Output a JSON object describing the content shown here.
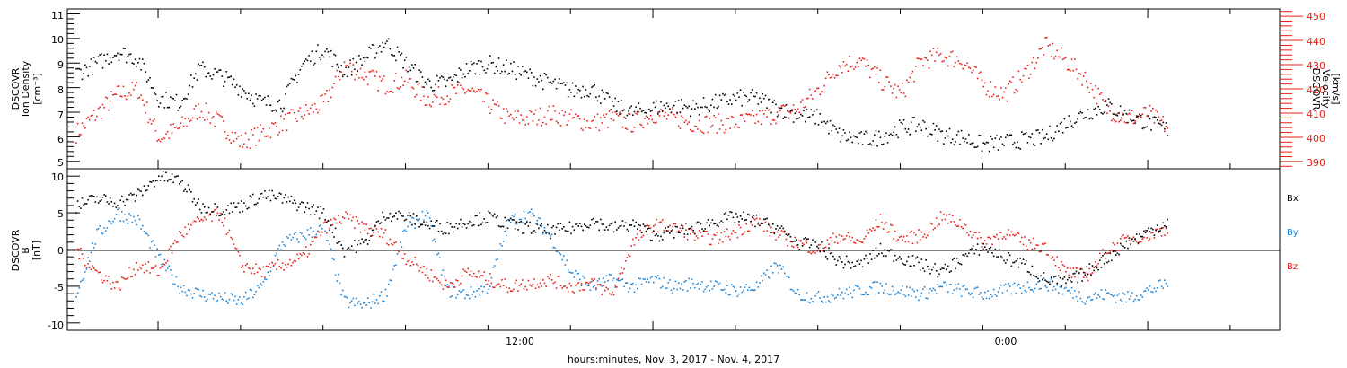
{
  "xlabel": "hours:minutes, Nov.  3, 2017 - Nov.  4, 2017",
  "x_ticks": [
    "12:00",
    "0:00"
  ],
  "colors": {
    "black": "#000000",
    "red": "#e8201a",
    "blue": "#1e84d6"
  },
  "panel1": {
    "ylabel_left": [
      "DSCOVR",
      "Ion Density",
      "[cm⁻³]"
    ],
    "ylabel_right": [
      "DSCOVR",
      "Velocity",
      "[km/s]"
    ],
    "left_ticks": [
      "5",
      "6",
      "7",
      "8",
      "9",
      "10",
      "11"
    ],
    "right_ticks": [
      "390",
      "400",
      "410",
      "420",
      "430",
      "440",
      "450"
    ]
  },
  "panel2": {
    "ylabel": [
      "DSCOVR",
      "B",
      "[nT]"
    ],
    "ticks": [
      "-10",
      "-5",
      "0",
      "5",
      "10"
    ],
    "legend": [
      "Bx",
      "By",
      "Bz"
    ]
  },
  "chart_data": [
    {
      "type": "scatter",
      "title": "",
      "xlabel": "hours:minutes, Nov.  3, 2017 - Nov.  4, 2017",
      "xlim_hours": [
        -2.2,
        27.2
      ],
      "y_axes": [
        {
          "side": "left",
          "label": "DSCOVR Ion Density [cm^-3]",
          "ylim": [
            4.7,
            11.2
          ]
        },
        {
          "side": "right",
          "label": "DSCOVR Velocity [km/s]",
          "ylim": [
            387,
            453
          ]
        }
      ],
      "series": [
        {
          "name": "Ion Density",
          "axis": "left",
          "color": "#000000",
          "x": [
            -2.0,
            -1.5,
            -1.0,
            -0.5,
            0.0,
            0.5,
            1.0,
            1.5,
            2.0,
            2.5,
            3.0,
            3.5,
            4.0,
            4.5,
            5.0,
            5.5,
            6.0,
            6.5,
            7.0,
            7.5,
            8.0,
            8.5,
            9.0,
            9.5,
            10.0,
            10.5,
            11.0,
            11.5,
            12.0,
            12.5,
            13.0,
            13.5,
            14.0,
            14.5,
            15.0,
            15.5,
            16.0,
            16.5,
            17.0,
            17.5,
            18.0,
            18.5,
            19.0,
            19.5,
            20.0,
            20.5,
            21.0,
            21.5,
            22.0,
            22.5,
            23.0,
            23.5,
            24.0,
            24.5
          ],
          "y": [
            8.6,
            9.0,
            9.5,
            9.2,
            7.6,
            7.4,
            8.8,
            8.5,
            8.0,
            7.4,
            7.4,
            9.0,
            9.6,
            8.7,
            9.2,
            9.9,
            9.0,
            8.2,
            8.2,
            8.8,
            9.0,
            8.8,
            8.5,
            8.2,
            7.9,
            8.0,
            7.3,
            7.0,
            7.2,
            7.3,
            7.2,
            7.4,
            7.6,
            7.6,
            7.2,
            6.9,
            6.8,
            6.1,
            5.9,
            6.0,
            6.4,
            6.5,
            6.1,
            6.0,
            5.7,
            5.8,
            5.9,
            6.0,
            6.6,
            7.0,
            7.3,
            6.9,
            6.6,
            6.3
          ]
        },
        {
          "name": "Velocity",
          "axis": "right",
          "color": "#e8201a",
          "x": [
            -2.0,
            -1.5,
            -1.0,
            -0.5,
            0.0,
            0.5,
            1.0,
            1.5,
            2.0,
            2.5,
            3.0,
            3.5,
            4.0,
            4.5,
            5.0,
            5.5,
            6.0,
            6.5,
            7.0,
            7.5,
            8.0,
            8.5,
            9.0,
            9.5,
            10.0,
            10.5,
            11.0,
            11.5,
            12.0,
            12.5,
            13.0,
            13.5,
            14.0,
            14.5,
            15.0,
            15.5,
            16.0,
            16.5,
            17.0,
            17.5,
            18.0,
            18.5,
            19.0,
            19.5,
            20.0,
            20.5,
            21.0,
            21.5,
            22.0,
            22.5,
            23.0,
            23.5,
            24.0,
            24.5
          ],
          "y": [
            402,
            410,
            418,
            420,
            400,
            404,
            412,
            406,
            398,
            402,
            406,
            410,
            414,
            430,
            426,
            422,
            424,
            416,
            418,
            420,
            414,
            408,
            408,
            410,
            408,
            406,
            408,
            406,
            410,
            408,
            406,
            406,
            406,
            408,
            410,
            412,
            420,
            430,
            432,
            424,
            418,
            432,
            434,
            432,
            422,
            418,
            426,
            438,
            432,
            424,
            412,
            408,
            410,
            404
          ]
        }
      ]
    },
    {
      "type": "scatter",
      "title": "",
      "xlabel": "hours:minutes, Nov.  3, 2017 - Nov.  4, 2017",
      "xlim_hours": [
        -2.2,
        27.2
      ],
      "ylabel": "DSCOVR B [nT]",
      "ylim": [
        -11,
        11
      ],
      "zero_line": true,
      "series": [
        {
          "name": "Bx",
          "color": "#000000",
          "x": [
            -2.0,
            -1.5,
            -1.0,
            -0.5,
            0.0,
            0.5,
            1.0,
            1.5,
            2.0,
            2.5,
            3.0,
            3.5,
            4.0,
            4.5,
            5.0,
            5.5,
            6.0,
            6.5,
            7.0,
            7.5,
            8.0,
            8.5,
            9.0,
            9.5,
            10.0,
            10.5,
            11.0,
            11.5,
            12.0,
            12.5,
            13.0,
            13.5,
            14.0,
            14.5,
            15.0,
            15.5,
            16.0,
            16.5,
            17.0,
            17.5,
            18.0,
            18.5,
            19.0,
            19.5,
            20.0,
            20.5,
            21.0,
            21.5,
            22.0,
            22.5,
            23.0,
            23.5,
            24.0,
            24.5
          ],
          "y": [
            6.0,
            7.0,
            6.5,
            7.5,
            10.0,
            9.5,
            6.0,
            5.5,
            6.0,
            7.5,
            7.0,
            6.0,
            5.0,
            0.0,
            1.0,
            5.0,
            4.5,
            3.5,
            3.0,
            4.0,
            4.5,
            3.5,
            3.0,
            2.5,
            3.0,
            4.0,
            3.0,
            3.5,
            2.0,
            2.5,
            3.0,
            4.0,
            4.5,
            4.0,
            3.0,
            1.0,
            0.5,
            -1.5,
            -2.0,
            0.0,
            -1.0,
            -2.0,
            -3.0,
            -1.0,
            0.5,
            -1.0,
            -2.0,
            -4.0,
            -4.5,
            -3.0,
            -1.0,
            1.0,
            2.5,
            4.0
          ]
        },
        {
          "name": "By",
          "color": "#1e84d6",
          "x": [
            -2.0,
            -1.5,
            -1.0,
            -0.5,
            0.0,
            0.5,
            1.0,
            1.5,
            2.0,
            2.5,
            3.0,
            3.5,
            4.0,
            4.5,
            5.0,
            5.5,
            6.0,
            6.5,
            7.0,
            7.5,
            8.0,
            8.5,
            9.0,
            9.5,
            10.0,
            10.5,
            11.0,
            11.5,
            12.0,
            12.5,
            13.0,
            13.5,
            14.0,
            14.5,
            15.0,
            15.5,
            16.0,
            16.5,
            17.0,
            17.5,
            18.0,
            18.5,
            19.0,
            19.5,
            20.0,
            20.5,
            21.0,
            21.5,
            22.0,
            22.5,
            23.0,
            23.5,
            24.0,
            24.5
          ],
          "y": [
            -6.0,
            2.0,
            5.0,
            4.0,
            -1.0,
            -5.0,
            -6.0,
            -6.5,
            -7.0,
            -5.0,
            1.0,
            2.0,
            3.0,
            -7.0,
            -7.5,
            -6.0,
            3.0,
            5.0,
            -5.5,
            -6.0,
            -5.0,
            4.0,
            5.0,
            2.0,
            -3.0,
            -5.0,
            -4.0,
            -5.0,
            -4.0,
            -5.0,
            -4.5,
            -5.0,
            -5.5,
            -5.0,
            -2.0,
            -6.0,
            -6.5,
            -6.0,
            -5.5,
            -5.0,
            -5.5,
            -6.0,
            -5.0,
            -5.5,
            -6.0,
            -5.5,
            -5.0,
            -4.5,
            -5.5,
            -6.5,
            -6.0,
            -6.5,
            -5.5,
            -4.5
          ]
        },
        {
          "name": "Bz",
          "color": "#e8201a",
          "x": [
            -2.0,
            -1.5,
            -1.0,
            -0.5,
            0.0,
            0.5,
            1.0,
            1.5,
            2.0,
            2.5,
            3.0,
            3.5,
            4.0,
            4.5,
            5.0,
            5.5,
            6.0,
            6.5,
            7.0,
            7.5,
            8.0,
            8.5,
            9.0,
            9.5,
            10.0,
            10.5,
            11.0,
            11.5,
            12.0,
            12.5,
            13.0,
            13.5,
            14.0,
            14.5,
            15.0,
            15.5,
            16.0,
            16.5,
            17.0,
            17.5,
            18.0,
            18.5,
            19.0,
            19.5,
            20.0,
            20.5,
            21.0,
            21.5,
            22.0,
            22.5,
            23.0,
            23.5,
            24.0,
            24.5
          ],
          "y": [
            0.0,
            -3.0,
            -5.0,
            -2.0,
            -3.0,
            2.0,
            4.0,
            5.0,
            -2.0,
            -3.0,
            -2.0,
            -1.0,
            3.0,
            4.5,
            3.0,
            2.0,
            -1.0,
            -3.0,
            -5.0,
            -3.0,
            -4.0,
            -5.0,
            -4.5,
            -4.0,
            -5.0,
            -4.5,
            -6.0,
            1.0,
            3.5,
            3.0,
            2.0,
            1.5,
            2.5,
            4.0,
            2.0,
            1.0,
            0.0,
            2.0,
            1.0,
            4.0,
            1.5,
            2.0,
            4.5,
            3.5,
            1.0,
            2.5,
            1.0,
            0.5,
            -3.0,
            -3.5,
            0.0,
            1.5,
            2.0,
            3.0
          ]
        }
      ]
    }
  ]
}
